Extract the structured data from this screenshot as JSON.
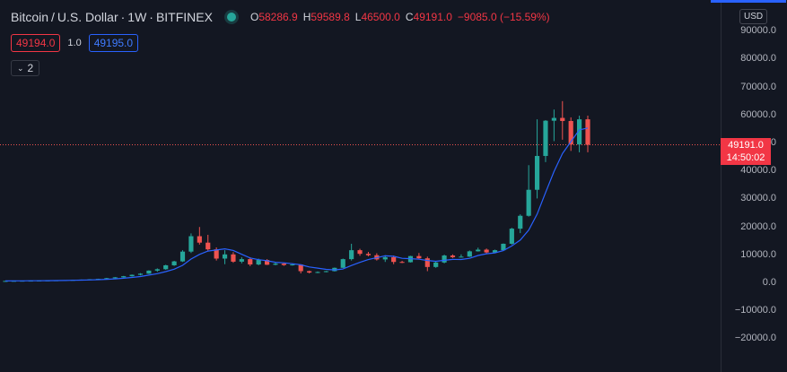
{
  "header": {
    "symbol": "Bitcoin",
    "separator": "/",
    "quote": "U.S. Dollar",
    "interval": "1W",
    "exchange": "BITFINEX",
    "ohlc": [
      {
        "key": "O",
        "value": "58286.9"
      },
      {
        "key": "H",
        "value": "59589.8"
      },
      {
        "key": "L",
        "value": "46500.0"
      },
      {
        "key": "C",
        "value": "49191.0"
      }
    ],
    "change": "−9085.0 (−15.59%)"
  },
  "quote_row": {
    "bid": "49194.0",
    "spread": "1.0",
    "ask": "49195.0"
  },
  "indicator_toggle": {
    "count": "2"
  },
  "price_scale": {
    "currency": "USD",
    "ticks": [
      "90000.0",
      "80000.0",
      "70000.0",
      "60000.0",
      "50000.0",
      "40000.0",
      "30000.0",
      "20000.0",
      "10000.0",
      "0.0",
      "−10000.0",
      "−20000.0"
    ],
    "last_price": "49191.0",
    "countdown": "14:50:02"
  },
  "colors": {
    "up": "#26a69a",
    "down": "#ef5350",
    "ma": "#2962ff",
    "background": "#131722"
  },
  "chart_data": {
    "type": "candlestick",
    "ylim": [
      -20000,
      90000
    ],
    "last_close": 49191.0,
    "candles": [
      [
        500,
        520,
        480,
        510
      ],
      [
        510,
        560,
        500,
        550
      ],
      [
        550,
        600,
        540,
        590
      ],
      [
        590,
        640,
        570,
        620
      ],
      [
        620,
        680,
        600,
        660
      ],
      [
        660,
        720,
        640,
        700
      ],
      [
        700,
        760,
        690,
        750
      ],
      [
        750,
        820,
        730,
        800
      ],
      [
        800,
        900,
        780,
        880
      ],
      [
        880,
        1000,
        860,
        980
      ],
      [
        980,
        1150,
        950,
        1100
      ],
      [
        1100,
        1300,
        1050,
        1250
      ],
      [
        1250,
        1600,
        1200,
        1500
      ],
      [
        1500,
        1900,
        1400,
        1800
      ],
      [
        1800,
        2300,
        1700,
        2200
      ],
      [
        2200,
        2800,
        2100,
        2700
      ],
      [
        2700,
        3300,
        2500,
        3100
      ],
      [
        3100,
        4300,
        3000,
        4200
      ],
      [
        4200,
        5000,
        3800,
        4700
      ],
      [
        4700,
        6300,
        4500,
        6100
      ],
      [
        6100,
        7700,
        5900,
        7500
      ],
      [
        7500,
        11500,
        7300,
        11000
      ],
      [
        11000,
        17500,
        10500,
        16500
      ],
      [
        16500,
        19800,
        13500,
        14200
      ],
      [
        14200,
        17000,
        11200,
        11800
      ],
      [
        11800,
        12500,
        7800,
        8500
      ],
      [
        8500,
        11500,
        6500,
        10000
      ],
      [
        10000,
        10800,
        7000,
        7400
      ],
      [
        7400,
        9000,
        6800,
        8300
      ],
      [
        8300,
        9000,
        5800,
        6400
      ],
      [
        6400,
        8500,
        6100,
        8000
      ],
      [
        8000,
        8300,
        6200,
        6300
      ],
      [
        6300,
        7200,
        6100,
        6700
      ],
      [
        6700,
        6900,
        5900,
        6200
      ],
      [
        6200,
        6700,
        6000,
        6400
      ],
      [
        6400,
        6500,
        3200,
        4000
      ],
      [
        4000,
        4200,
        3200,
        3500
      ],
      [
        3500,
        3900,
        3300,
        3700
      ],
      [
        3700,
        4100,
        3600,
        4000
      ],
      [
        4000,
        5300,
        3900,
        5200
      ],
      [
        5200,
        8500,
        5100,
        8300
      ],
      [
        8300,
        13800,
        7800,
        11500
      ],
      [
        11500,
        12000,
        9500,
        10200
      ],
      [
        10200,
        10900,
        9300,
        9700
      ],
      [
        9700,
        10400,
        7800,
        8200
      ],
      [
        8200,
        9700,
        7300,
        9000
      ],
      [
        9000,
        9600,
        6500,
        7300
      ],
      [
        7300,
        7700,
        6900,
        7200
      ],
      [
        7200,
        9500,
        7100,
        9400
      ],
      [
        9400,
        10500,
        8400,
        8600
      ],
      [
        8600,
        9200,
        4000,
        5500
      ],
      [
        5500,
        7500,
        5200,
        7100
      ],
      [
        7100,
        9900,
        6800,
        9600
      ],
      [
        9600,
        10000,
        8700,
        9000
      ],
      [
        9000,
        10000,
        8900,
        9200
      ],
      [
        9200,
        11400,
        9100,
        11100
      ],
      [
        11100,
        12400,
        11000,
        11700
      ],
      [
        11700,
        12100,
        10200,
        10700
      ],
      [
        10700,
        11700,
        10500,
        11500
      ],
      [
        11500,
        13900,
        11400,
        13800
      ],
      [
        13800,
        19500,
        13500,
        19200
      ],
      [
        19200,
        24300,
        17600,
        23800
      ],
      [
        23800,
        41900,
        23500,
        33100
      ],
      [
        33100,
        58300,
        30000,
        45200
      ],
      [
        45200,
        58000,
        43000,
        57800
      ],
      [
        57800,
        61800,
        50500,
        58800
      ],
      [
        58800,
        64800,
        51000,
        57700
      ],
      [
        57700,
        59000,
        47000,
        49300
      ],
      [
        49300,
        59600,
        46500,
        58300
      ],
      [
        58300,
        59600,
        46500,
        49191
      ]
    ]
  }
}
